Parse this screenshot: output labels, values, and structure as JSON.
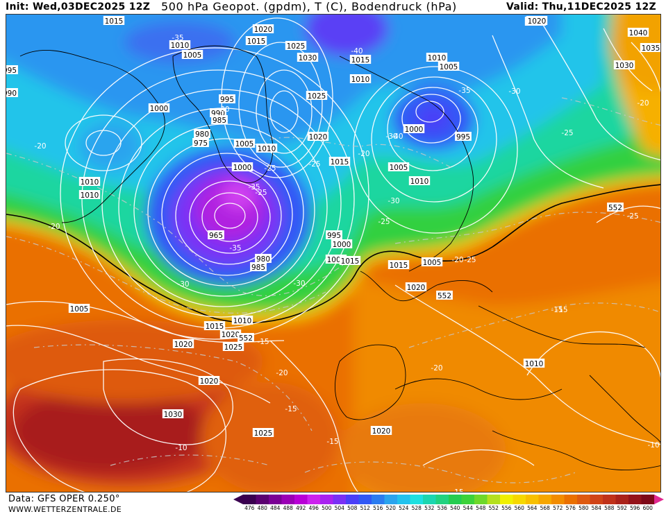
{
  "header": {
    "init": "Init: Wed,03DEC2025 12Z",
    "title": "500 hPa Geopot. (gpdm), T (C), Bodendruck (hPa)",
    "valid": "Valid: Thu,11DEC2025 12Z"
  },
  "footer": {
    "data_source": "Data: GFS OPER 0.250°",
    "website": "WWW.WETTERZENTRALE.DE"
  },
  "legend": {
    "ticks": [
      "476",
      "480",
      "484",
      "488",
      "492",
      "496",
      "500",
      "504",
      "508",
      "512",
      "516",
      "520",
      "524",
      "528",
      "532",
      "536",
      "540",
      "544",
      "548",
      "552",
      "556",
      "560",
      "564",
      "568",
      "572",
      "576",
      "580",
      "584",
      "588",
      "592",
      "596",
      "600"
    ],
    "colors": [
      "#3a0050",
      "#5a0070",
      "#7a0095",
      "#9a00b5",
      "#b800d6",
      "#cc22ee",
      "#a822f0",
      "#7a30f5",
      "#4a3ff8",
      "#3058f5",
      "#2b7cf0",
      "#2aa4ee",
      "#22c2ee",
      "#1ee0e0",
      "#1cd6b0",
      "#22d280",
      "#25cc50",
      "#3cd23a",
      "#6ed82a",
      "#b4e01e",
      "#f0f000",
      "#f6d800",
      "#f8c000",
      "#f6a600",
      "#f28c00",
      "#ea7000",
      "#de5a10",
      "#d04418",
      "#c0321a",
      "#aa221a",
      "#94121a",
      "#7e0818"
    ],
    "extend_low_color": "#3a0050",
    "extend_high_color": "#e02890"
  },
  "map": {
    "pressure_labels": [
      "1015",
      "1010",
      "1005",
      "1020",
      "1015",
      "1025",
      "1030",
      "1010",
      "1005",
      "1040",
      "1035",
      "1030",
      "1010",
      "1000",
      "995",
      "990",
      "985",
      "980",
      "975",
      "1000",
      "1005",
      "1010",
      "1020",
      "1025",
      "995",
      "1015",
      "1010",
      "1000",
      "995",
      "990",
      "1005",
      "1015",
      "1015",
      "1020",
      "1010",
      "1005",
      "1000",
      "995",
      "1000",
      "985",
      "980",
      "965",
      "1010",
      "1015",
      "1020",
      "1025",
      "1030",
      "1025",
      "1020",
      "1020",
      "1015",
      "1015",
      "1010",
      "1005",
      "1010",
      "1020",
      "1020"
    ],
    "temperature_labels": [
      "-35",
      "-30",
      "-25",
      "-20",
      "-25",
      "-30",
      "-35",
      "-40",
      "-35",
      "-30",
      "-25",
      "-20",
      "-35",
      "-40",
      "-30",
      "-25",
      "-20",
      "-30",
      "-25",
      "-20",
      "-15",
      "-10",
      "-15",
      "-20",
      "-15",
      "-10",
      "-15",
      "-20",
      "-15",
      "-10",
      "-25",
      "-30",
      "-20",
      "-25",
      "-15"
    ],
    "contour_552_labels": [
      "552",
      "552",
      "552"
    ]
  }
}
